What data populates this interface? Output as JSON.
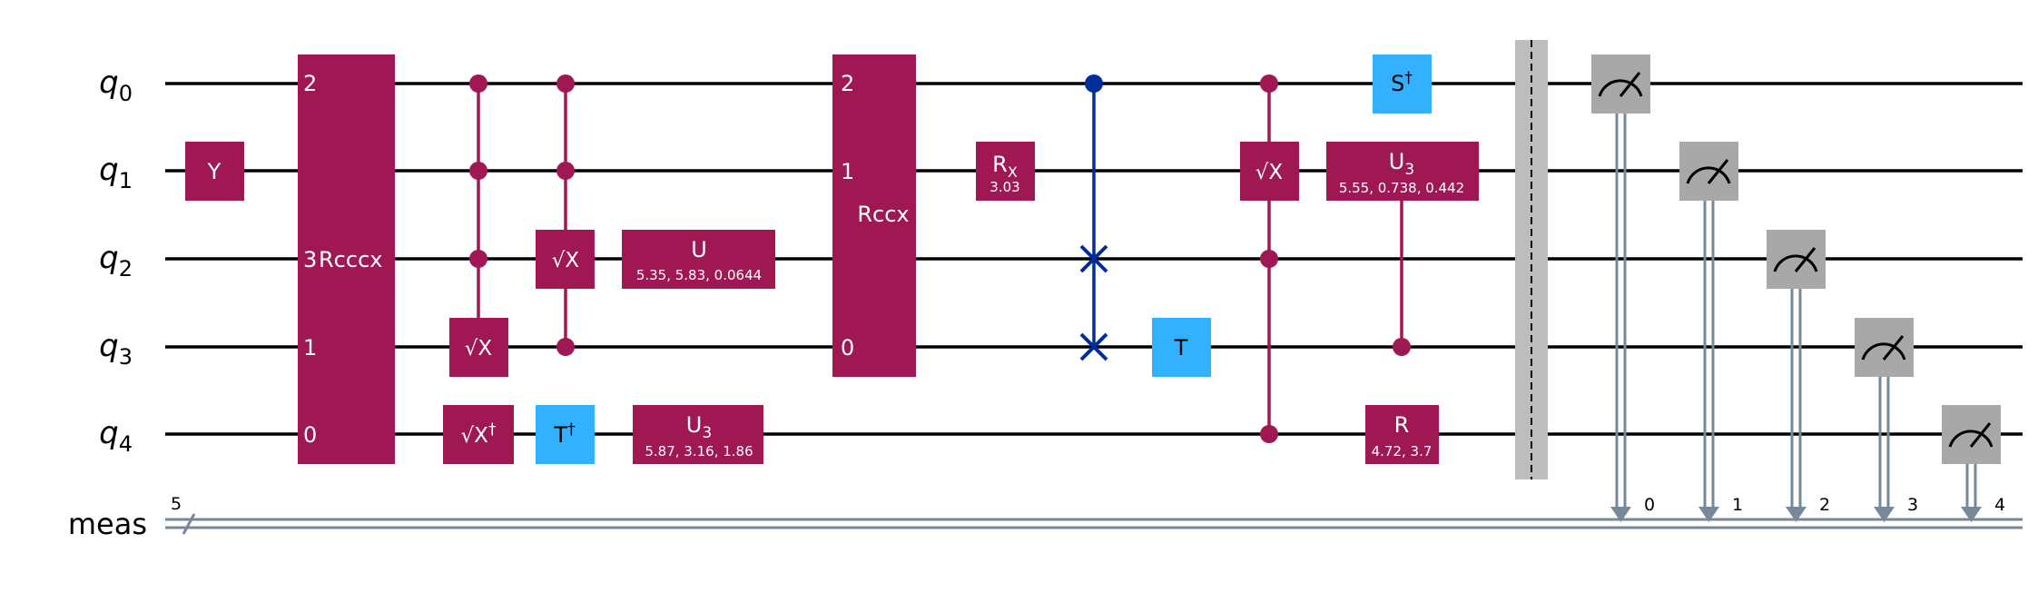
{
  "colors": {
    "gate_magenta": "#9f1853",
    "gate_cyan": "#33b1ff",
    "swap_blue": "#002d9c",
    "measure_gray": "#a8a8a8",
    "barrier_gray": "#bdbdbd",
    "classical_wire": "#778899",
    "wire": "#000000"
  },
  "qubits": [
    {
      "sym": "q",
      "idx": "0"
    },
    {
      "sym": "q",
      "idx": "1"
    },
    {
      "sym": "q",
      "idx": "2"
    },
    {
      "sym": "q",
      "idx": "3"
    },
    {
      "sym": "q",
      "idx": "4"
    }
  ],
  "classical_register": {
    "label": "meas",
    "size": "5"
  },
  "gates": {
    "y": {
      "label": "Y"
    },
    "rcccx": {
      "label": "Rcccx",
      "pin_q0": "2",
      "pin_q2": "3",
      "pin_q3": "1",
      "pin_q4": "0"
    },
    "sx_ctrl_q3": {
      "label": "√X"
    },
    "sx_ctrl_q2": {
      "label": "√X"
    },
    "sxdg": {
      "label": "√X",
      "dagger": "†"
    },
    "tdg": {
      "label": "T",
      "dagger": "†"
    },
    "u": {
      "label": "U",
      "params": "5.35, 5.83, 0.0644"
    },
    "u3_q4": {
      "label": "U",
      "sub": "3",
      "params": "5.87, 3.16, 1.86"
    },
    "rccx": {
      "label": "Rccx",
      "pin_q0": "2",
      "pin_q1": "1",
      "pin_q3": "0"
    },
    "rx": {
      "label": "R",
      "sub": "X",
      "params": "3.03"
    },
    "t": {
      "label": "T"
    },
    "sx_ctrl_q1": {
      "label": "√X"
    },
    "sdg": {
      "label": "S",
      "dagger": "†"
    },
    "u3_q1": {
      "label": "U",
      "sub": "3",
      "params": "5.55, 0.738, 0.442"
    },
    "r": {
      "label": "R",
      "params": "4.72, 3.7"
    }
  },
  "measurements": [
    {
      "qubit": "q0",
      "cbit": "0"
    },
    {
      "qubit": "q1",
      "cbit": "1"
    },
    {
      "qubit": "q2",
      "cbit": "2"
    },
    {
      "qubit": "q3",
      "cbit": "3"
    },
    {
      "qubit": "q4",
      "cbit": "4"
    }
  ]
}
